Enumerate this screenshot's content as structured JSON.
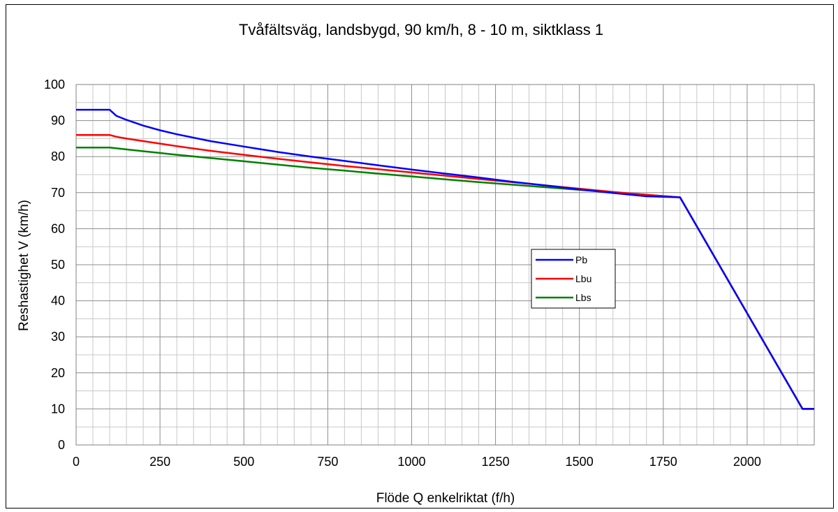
{
  "chart_data": {
    "type": "line",
    "title": "Tvåfältsväg, landsbygd, 90 km/h, 8 - 10 m, siktklass 1",
    "xlabel": "Flöde Q enkelriktat (f/h)",
    "ylabel": "Reshastighet V (km/h)",
    "xlim": [
      0,
      2200
    ],
    "ylim": [
      0,
      100
    ],
    "x_ticks": [
      0,
      250,
      500,
      750,
      1000,
      1250,
      1500,
      1750,
      2000
    ],
    "y_ticks": [
      0,
      10,
      20,
      30,
      40,
      50,
      60,
      70,
      80,
      90,
      100
    ],
    "x_minor_step": 50,
    "y_minor_step": 5,
    "grid": true,
    "legend_position": "center-right",
    "series": [
      {
        "name": "Pb",
        "color": "#0000ff",
        "x": [
          0,
          100,
          120,
          150,
          200,
          250,
          300,
          400,
          500,
          600,
          700,
          800,
          900,
          1000,
          1100,
          1200,
          1300,
          1400,
          1500,
          1600,
          1700,
          1800,
          2165,
          2200
        ],
        "y": [
          93.0,
          93.0,
          91.3,
          90.2,
          88.6,
          87.3,
          86.2,
          84.3,
          82.8,
          81.3,
          80.0,
          78.8,
          77.6,
          76.4,
          75.3,
          74.2,
          73.0,
          72.0,
          70.9,
          69.9,
          69.0,
          68.7,
          10.0,
          10.0
        ]
      },
      {
        "name": "Lbu",
        "color": "#ff0000",
        "x": [
          0,
          100,
          120,
          150,
          200,
          250,
          300,
          400,
          500,
          600,
          700,
          800,
          900,
          1000,
          1100,
          1200,
          1300,
          1400,
          1500,
          1600,
          1700,
          1800,
          2165,
          2200
        ],
        "y": [
          86.0,
          86.0,
          85.5,
          85.0,
          84.3,
          83.6,
          82.9,
          81.6,
          80.5,
          79.4,
          78.4,
          77.4,
          76.5,
          75.6,
          74.7,
          73.8,
          72.9,
          72.0,
          71.1,
          70.2,
          69.4,
          68.7,
          10.0,
          10.0
        ]
      },
      {
        "name": "Lbs",
        "color": "#008000",
        "x": [
          0,
          100,
          150,
          200,
          250,
          300,
          400,
          500,
          600,
          700,
          800,
          900,
          1000,
          1100,
          1200,
          1300,
          1400,
          1500,
          1600,
          1700,
          1800,
          2165,
          2200
        ],
        "y": [
          82.5,
          82.5,
          82.0,
          81.5,
          81.0,
          80.5,
          79.6,
          78.7,
          77.8,
          76.9,
          76.1,
          75.3,
          74.5,
          73.7,
          72.9,
          72.2,
          71.5,
          70.8,
          70.1,
          69.4,
          68.7,
          10.0,
          10.0
        ]
      }
    ]
  }
}
